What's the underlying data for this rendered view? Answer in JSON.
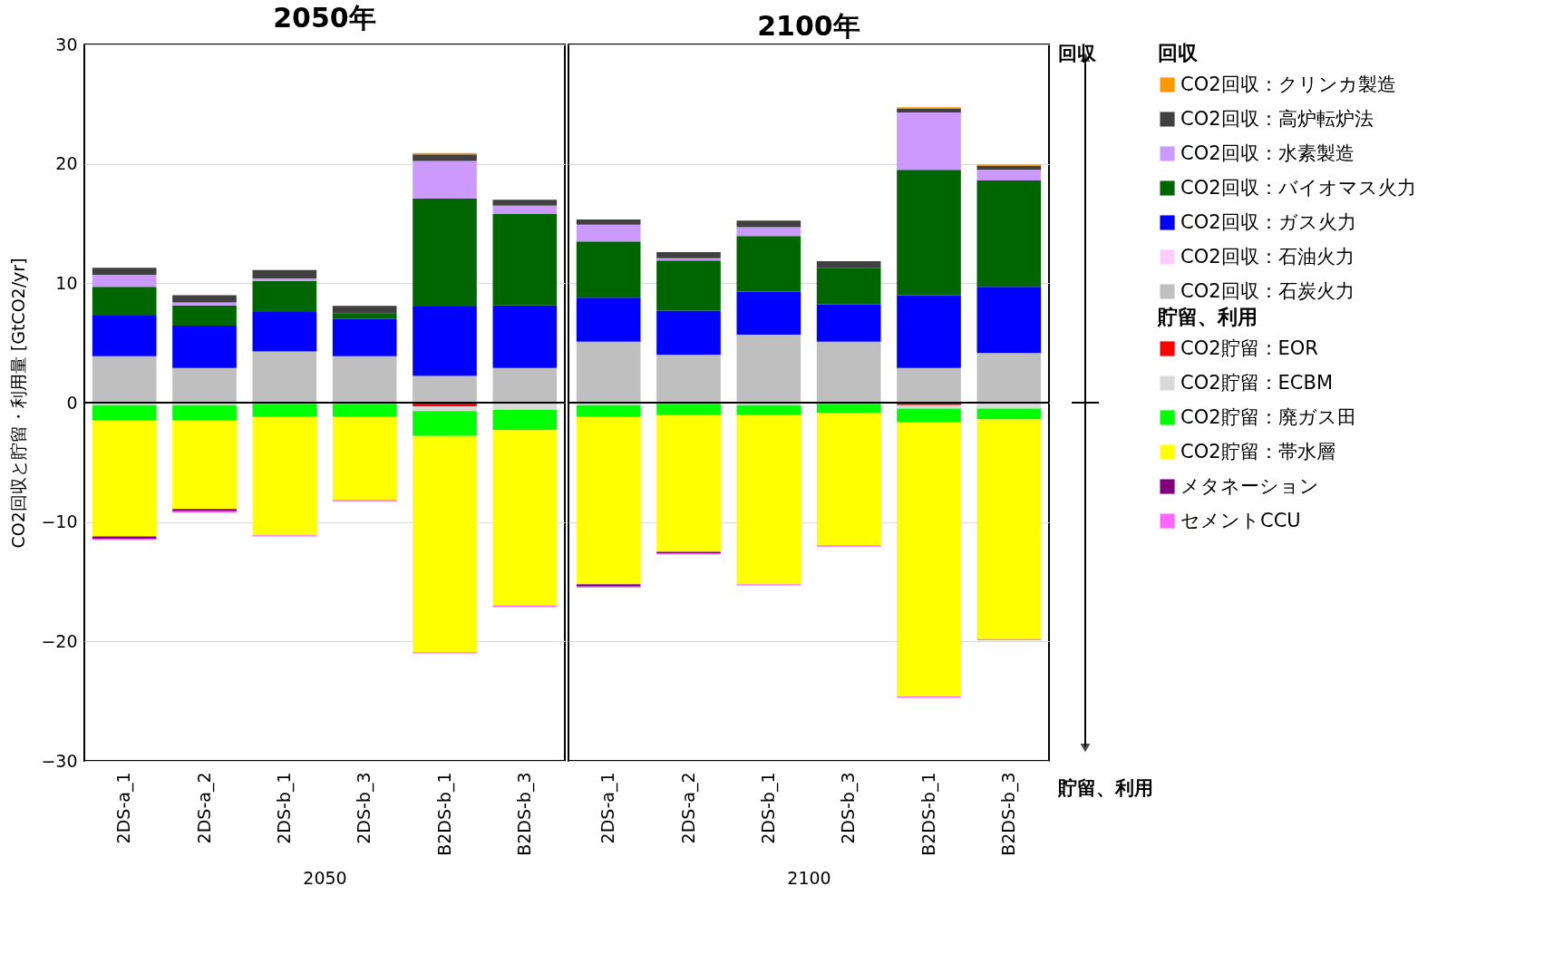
{
  "chart_data": [
    {
      "type": "bar",
      "stacked": true,
      "title": "2050年",
      "xlabel": "2050",
      "ylabel": "CO2回収と貯留・利用量 [GtCO2/yr]",
      "categories": [
        "2DS-a_1",
        "2DS-a_2",
        "2DS-b_1",
        "2DS-b_3",
        "B2DS-b_1",
        "B2DS-b_3"
      ],
      "ylim": [
        -30,
        30
      ],
      "yticks": [
        -30,
        -20,
        -10,
        0,
        10,
        20,
        30
      ],
      "grid": "y",
      "legend": false,
      "series": [
        {
          "color": "#bfbfbf",
          "values": [
            3.9,
            2.9,
            4.3,
            3.9,
            2.25,
            2.9
          ]
        },
        {
          "color": "#ffccff",
          "values": [
            0,
            0,
            0,
            0,
            0,
            0
          ]
        },
        {
          "color": "#0000ff",
          "values": [
            3.4,
            3.55,
            3.3,
            3.1,
            5.8,
            5.25
          ]
        },
        {
          "color": "#006600",
          "values": [
            2.4,
            1.7,
            2.6,
            0.5,
            9.05,
            7.65
          ]
        },
        {
          "color": "#cc99ff",
          "values": [
            1.0,
            0.25,
            0.2,
            0,
            3.15,
            0.7
          ]
        },
        {
          "color": "#404040",
          "values": [
            0.6,
            0.6,
            0.7,
            0.6,
            0.55,
            0.5
          ]
        },
        {
          "color": "#ff9900",
          "values": [
            0,
            0,
            0,
            0,
            0.1,
            0
          ]
        },
        {
          "color": "#ff0000",
          "values": [
            0,
            0,
            0,
            0,
            -0.3,
            0
          ]
        },
        {
          "color": "#d9d9d9",
          "values": [
            -0.2,
            -0.2,
            -0.1,
            -0.1,
            -0.4,
            -0.6
          ]
        },
        {
          "color": "#00ff00",
          "values": [
            -1.3,
            -1.3,
            -1.1,
            -1.1,
            -2.1,
            -1.7
          ]
        },
        {
          "color": "#ffff00",
          "values": [
            -9.7,
            -7.4,
            -9.9,
            -6.95,
            -18.1,
            -14.7
          ]
        },
        {
          "color": "#800080",
          "values": [
            -0.2,
            -0.2,
            0,
            0,
            0,
            0
          ]
        },
        {
          "color": "#ff66ff",
          "values": [
            -0.1,
            -0.1,
            -0.1,
            -0.1,
            -0.1,
            -0.1
          ]
        }
      ]
    },
    {
      "type": "bar",
      "stacked": true,
      "title": "2100年",
      "xlabel": "2100",
      "categories": [
        "2DS-a_1",
        "2DS-a_2",
        "2DS-b_1",
        "2DS-b_3",
        "B2DS-b_1",
        "B2DS-b_3"
      ],
      "ylim": [
        -30,
        30
      ],
      "yticks": [
        -30,
        -20,
        -10,
        0,
        10,
        20,
        30
      ],
      "grid": "y",
      "tick_labels": "x",
      "legend": "right",
      "legend_title": [
        "回収",
        "貯留、利用"
      ],
      "annotations": [
        "回収",
        "貯留、利用"
      ],
      "series": [
        {
          "name": "CO2回収：石炭火力",
          "color": "#bfbfbf",
          "values": [
            5.1,
            4.0,
            5.7,
            5.1,
            2.9,
            4.15
          ]
        },
        {
          "name": "CO2回収：石油火力",
          "color": "#ffccff",
          "values": [
            0,
            0,
            0,
            0,
            0,
            0
          ]
        },
        {
          "name": "CO2回収：ガス火力",
          "color": "#0000ff",
          "values": [
            3.7,
            3.7,
            3.6,
            3.15,
            6.1,
            5.55
          ]
        },
        {
          "name": "CO2回収：バイオマス火力",
          "color": "#006600",
          "values": [
            4.7,
            4.2,
            4.65,
            3.05,
            10.5,
            8.9
          ]
        },
        {
          "name": "CO2回収：水素製造",
          "color": "#cc99ff",
          "values": [
            1.4,
            0.2,
            0.75,
            0,
            4.8,
            0.9
          ]
        },
        {
          "name": "CO2回収：高炉転炉法",
          "color": "#404040",
          "values": [
            0.45,
            0.5,
            0.55,
            0.55,
            0.3,
            0.35
          ]
        },
        {
          "name": "CO2回収：クリンカ製造",
          "color": "#ff9900",
          "values": [
            0,
            0,
            0,
            0,
            0.15,
            0.1
          ]
        },
        {
          "name": "CO2貯留：EOR",
          "color": "#ff0000",
          "values": [
            0,
            0,
            0,
            0,
            -0.2,
            0
          ]
        },
        {
          "name": "CO2貯留：ECBM",
          "color": "#d9d9d9",
          "values": [
            -0.2,
            -0.1,
            -0.2,
            -0.1,
            -0.3,
            -0.5
          ]
        },
        {
          "name": "CO2貯留：廃ガス田",
          "color": "#00ff00",
          "values": [
            -1.0,
            -0.95,
            -0.85,
            -0.75,
            -1.15,
            -0.9
          ]
        },
        {
          "name": "CO2貯留：帯水層",
          "color": "#ffff00",
          "values": [
            -14.0,
            -11.45,
            -14.15,
            -11.1,
            -22.95,
            -18.4
          ]
        },
        {
          "name": "メタネーション",
          "color": "#800080",
          "values": [
            -0.2,
            -0.1,
            0,
            0,
            0,
            0
          ]
        },
        {
          "name": "セメントCCU",
          "color": "#ff66ff",
          "values": [
            -0.1,
            -0.1,
            -0.1,
            -0.1,
            -0.1,
            -0.1
          ]
        }
      ]
    }
  ]
}
